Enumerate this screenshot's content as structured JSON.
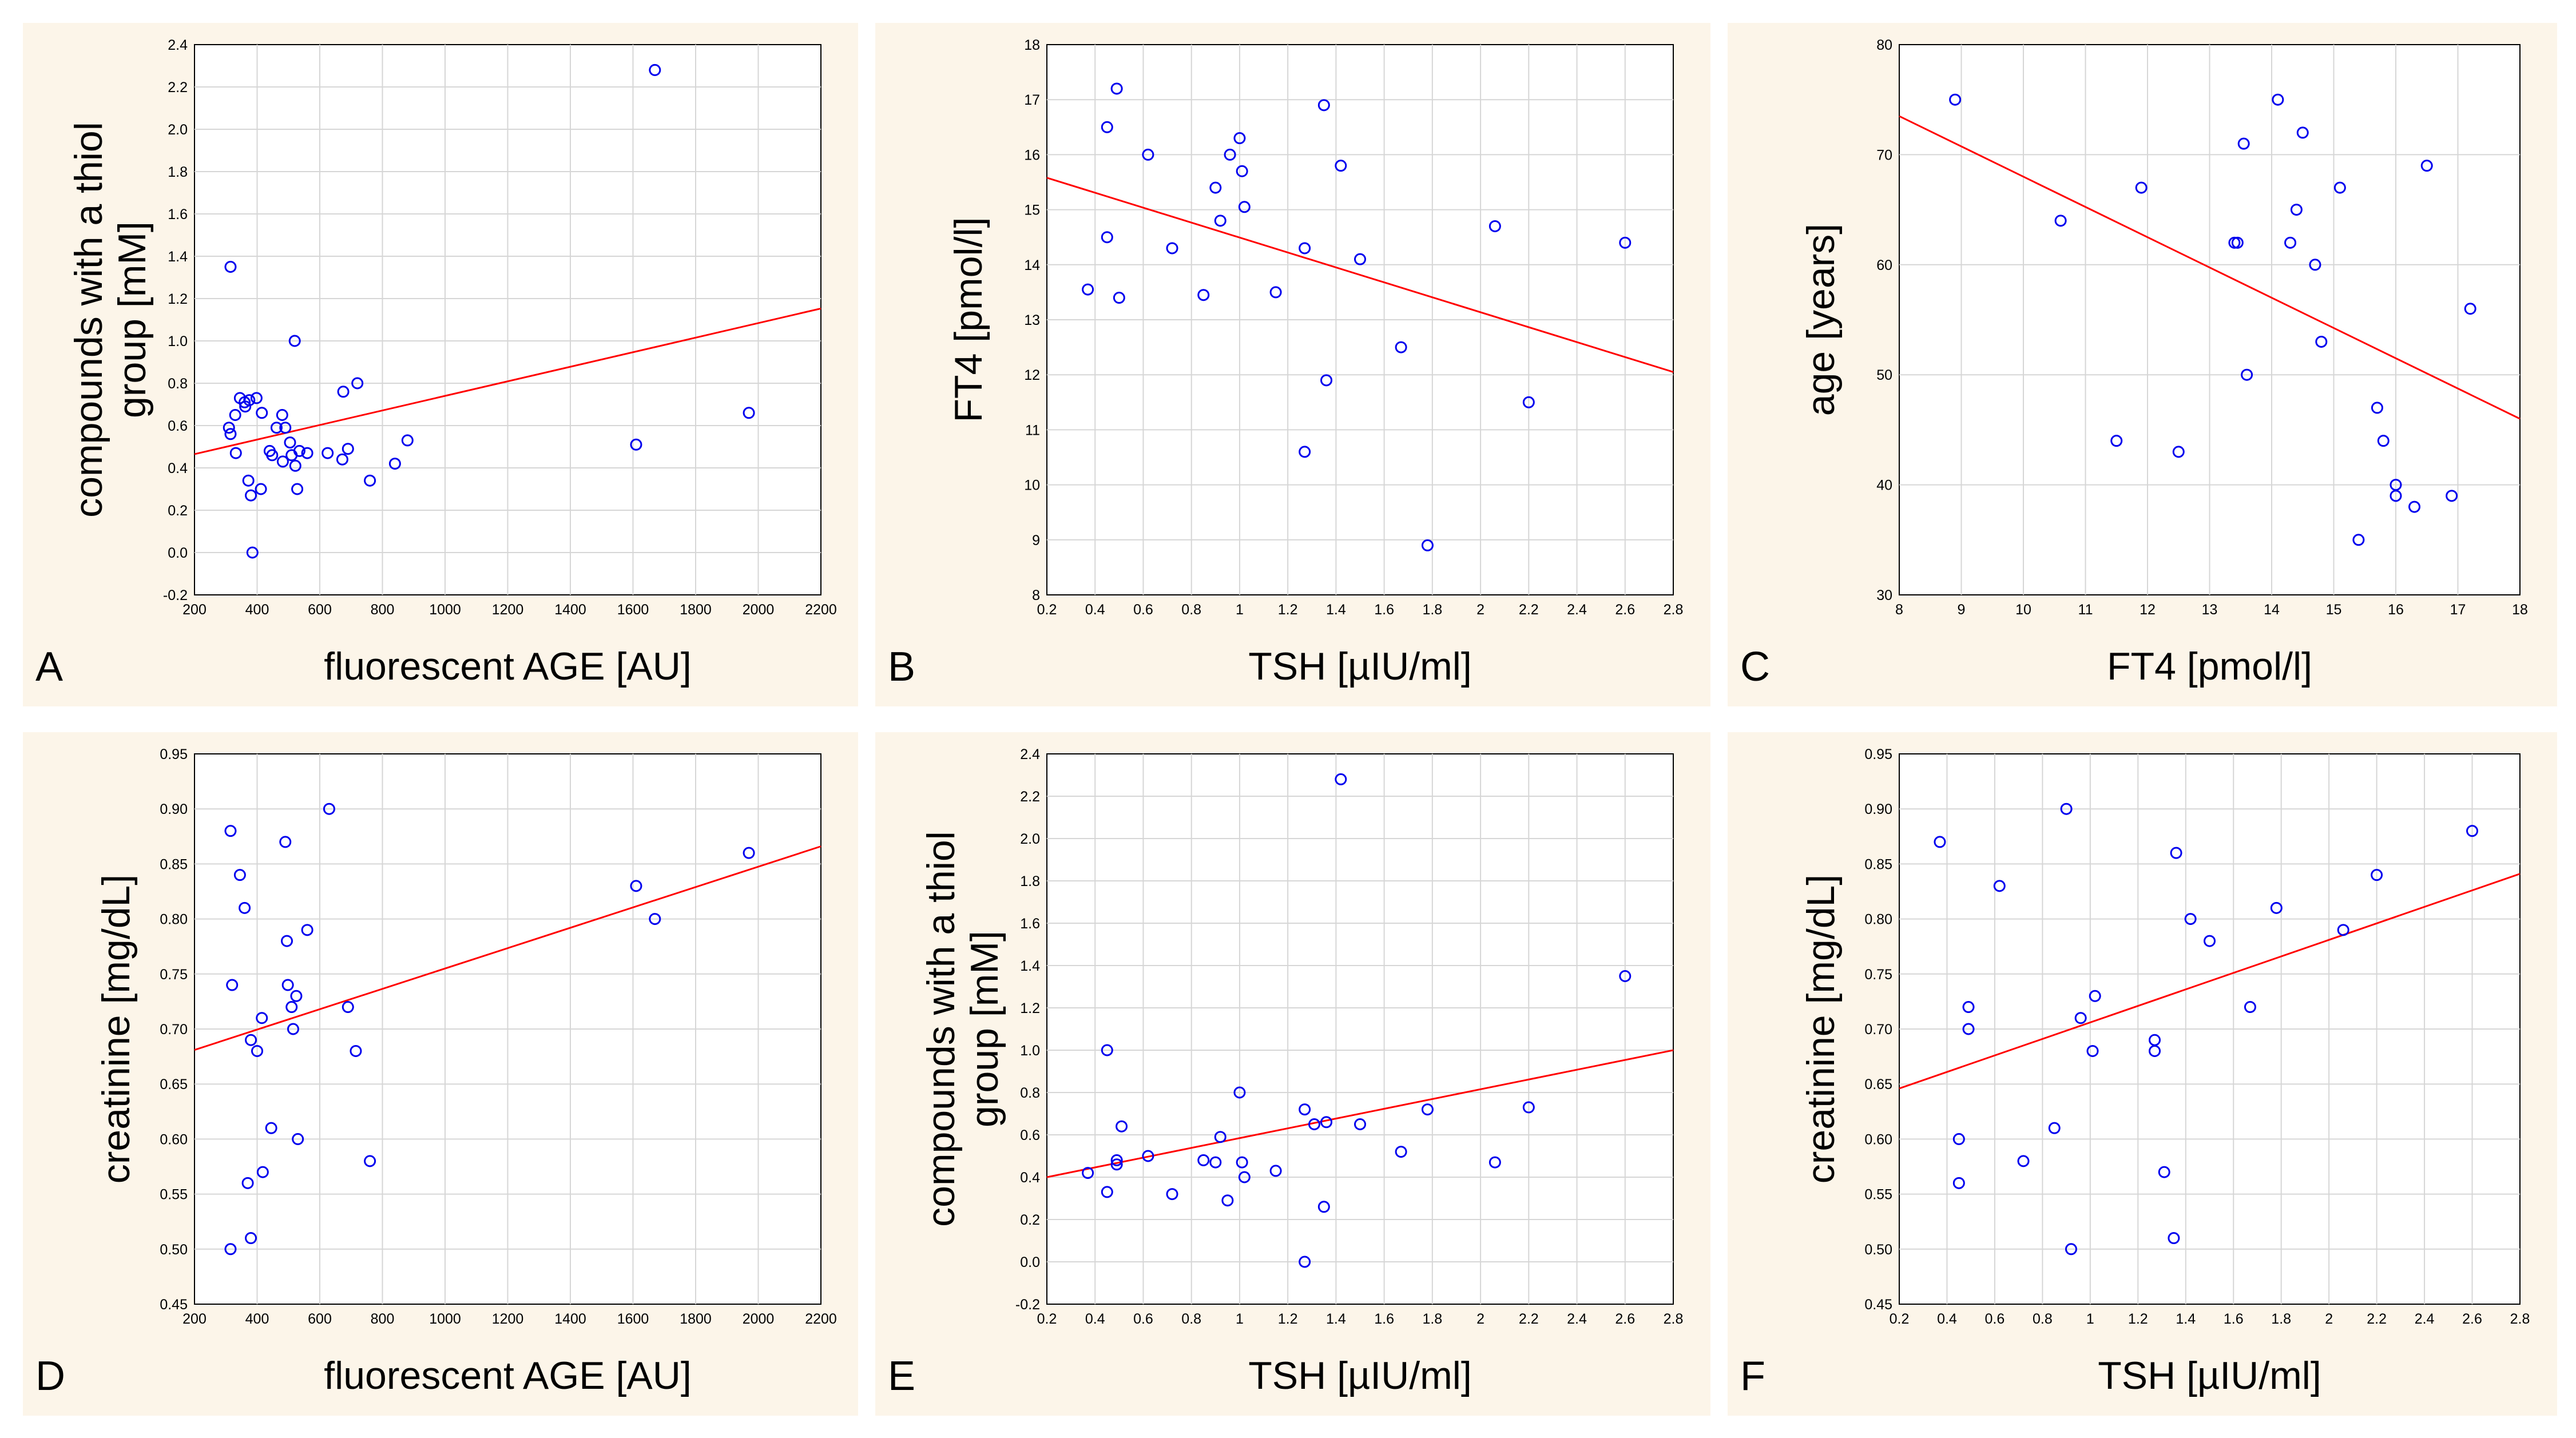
{
  "figure": {
    "background": "#fcf5e9",
    "point_color": "#0000ee",
    "fit_color": "#ff0000"
  },
  "chart_data": [
    {
      "id": "A",
      "type": "scatter",
      "panel_label": "A",
      "xlabel": "fluorescent AGE [AU]",
      "ylabel_lines": [
        "compounds with a thiol",
        "group [mM]"
      ],
      "xlim": [
        200,
        2200
      ],
      "ylim": [
        -0.2,
        2.4
      ],
      "xticks": [
        200,
        400,
        600,
        800,
        1000,
        1200,
        1400,
        1600,
        1800,
        2000,
        2200
      ],
      "yticks": [
        -0.2,
        0.0,
        0.2,
        0.4,
        0.6,
        0.8,
        1.0,
        1.2,
        1.4,
        1.6,
        1.8,
        2.0,
        2.2,
        2.4
      ],
      "ytick_decimals": 1,
      "points": [
        [
          315,
          1.35
        ],
        [
          310,
          0.59
        ],
        [
          315,
          0.56
        ],
        [
          330,
          0.65
        ],
        [
          332,
          0.47
        ],
        [
          345,
          0.73
        ],
        [
          360,
          0.71
        ],
        [
          362,
          0.69
        ],
        [
          375,
          0.72
        ],
        [
          372,
          0.34
        ],
        [
          380,
          0.27
        ],
        [
          385,
          0.0
        ],
        [
          398,
          0.73
        ],
        [
          415,
          0.66
        ],
        [
          412,
          0.3
        ],
        [
          440,
          0.48
        ],
        [
          448,
          0.46
        ],
        [
          462,
          0.59
        ],
        [
          480,
          0.65
        ],
        [
          482,
          0.43
        ],
        [
          490,
          0.59
        ],
        [
          505,
          0.52
        ],
        [
          510,
          0.46
        ],
        [
          520,
          1.0
        ],
        [
          522,
          0.41
        ],
        [
          528,
          0.3
        ],
        [
          535,
          0.48
        ],
        [
          560,
          0.47
        ],
        [
          625,
          0.47
        ],
        [
          672,
          0.44
        ],
        [
          675,
          0.76
        ],
        [
          690,
          0.49
        ],
        [
          720,
          0.8
        ],
        [
          760,
          0.34
        ],
        [
          840,
          0.42
        ],
        [
          880,
          0.53
        ],
        [
          1610,
          0.51
        ],
        [
          1670,
          2.28
        ],
        [
          1970,
          0.66
        ]
      ],
      "fit": [
        [
          200,
          0.465
        ],
        [
          2200,
          1.153
        ]
      ]
    },
    {
      "id": "B",
      "type": "scatter",
      "panel_label": "B",
      "xlabel": "TSH  [µIU/ml]",
      "ylabel_lines": [
        "FT4 [pmol/l]"
      ],
      "xlim": [
        0.2,
        2.8
      ],
      "ylim": [
        8,
        18
      ],
      "xticks": [
        0.2,
        0.4,
        0.6,
        0.8,
        1.0,
        1.2,
        1.4,
        1.6,
        1.8,
        2.0,
        2.2,
        2.4,
        2.6,
        2.8
      ],
      "yticks": [
        8,
        9,
        10,
        11,
        12,
        13,
        14,
        15,
        16,
        17,
        18
      ],
      "ytick_decimals": 0,
      "points": [
        [
          0.37,
          13.55
        ],
        [
          0.45,
          16.5
        ],
        [
          0.45,
          14.5
        ],
        [
          0.49,
          17.2
        ],
        [
          0.5,
          13.4
        ],
        [
          0.62,
          16.0
        ],
        [
          0.72,
          14.3
        ],
        [
          0.85,
          13.45
        ],
        [
          0.9,
          15.4
        ],
        [
          0.92,
          14.8
        ],
        [
          0.96,
          16.0
        ],
        [
          1.0,
          16.3
        ],
        [
          1.01,
          15.7
        ],
        [
          1.02,
          15.05
        ],
        [
          1.15,
          13.5
        ],
        [
          1.27,
          14.3
        ],
        [
          1.27,
          10.6
        ],
        [
          1.35,
          16.9
        ],
        [
          1.36,
          11.9
        ],
        [
          1.42,
          15.8
        ],
        [
          1.5,
          14.1
        ],
        [
          1.67,
          12.5
        ],
        [
          1.78,
          8.9
        ],
        [
          2.06,
          14.7
        ],
        [
          2.2,
          11.5
        ],
        [
          2.6,
          14.4
        ]
      ],
      "fit": [
        [
          0.2,
          15.58
        ],
        [
          2.8,
          12.05
        ]
      ]
    },
    {
      "id": "C",
      "type": "scatter",
      "panel_label": "C",
      "xlabel": "FT4 [pmol/l]",
      "ylabel_lines": [
        "age [years]"
      ],
      "xlim": [
        8,
        18
      ],
      "ylim": [
        30,
        80
      ],
      "xticks": [
        8,
        9,
        10,
        11,
        12,
        13,
        14,
        15,
        16,
        17,
        18
      ],
      "yticks": [
        30,
        40,
        50,
        60,
        70,
        80
      ],
      "ytick_decimals": 0,
      "points": [
        [
          8.9,
          75
        ],
        [
          10.6,
          64
        ],
        [
          11.5,
          44
        ],
        [
          11.9,
          67
        ],
        [
          12.5,
          43
        ],
        [
          13.4,
          62
        ],
        [
          13.45,
          62
        ],
        [
          13.55,
          71
        ],
        [
          13.6,
          50
        ],
        [
          14.1,
          75
        ],
        [
          14.3,
          62
        ],
        [
          14.4,
          65
        ],
        [
          14.5,
          72
        ],
        [
          14.7,
          60
        ],
        [
          14.8,
          53
        ],
        [
          15.1,
          67
        ],
        [
          15.4,
          35
        ],
        [
          15.7,
          47
        ],
        [
          15.8,
          44
        ],
        [
          16.0,
          40
        ],
        [
          16.0,
          39
        ],
        [
          16.3,
          38
        ],
        [
          16.5,
          69
        ],
        [
          16.9,
          39
        ],
        [
          17.2,
          56
        ]
      ],
      "fit": [
        [
          8,
          73.5
        ],
        [
          18,
          46.0
        ]
      ]
    },
    {
      "id": "D",
      "type": "scatter",
      "panel_label": "D",
      "xlabel": "fluorescent AGE [AU]",
      "ylabel_lines": [
        "creatinine [mg/dL]"
      ],
      "xlim": [
        200,
        2200
      ],
      "ylim": [
        0.45,
        0.95
      ],
      "xticks": [
        200,
        400,
        600,
        800,
        1000,
        1200,
        1400,
        1600,
        1800,
        2000,
        2200
      ],
      "yticks": [
        0.45,
        0.5,
        0.55,
        0.6,
        0.65,
        0.7,
        0.75,
        0.8,
        0.85,
        0.9,
        0.95
      ],
      "ytick_decimals": 2,
      "points": [
        [
          315,
          0.88
        ],
        [
          315,
          0.5
        ],
        [
          320,
          0.74
        ],
        [
          345,
          0.84
        ],
        [
          360,
          0.81
        ],
        [
          370,
          0.56
        ],
        [
          380,
          0.69
        ],
        [
          380,
          0.51
        ],
        [
          400,
          0.68
        ],
        [
          415,
          0.71
        ],
        [
          418,
          0.57
        ],
        [
          445,
          0.61
        ],
        [
          490,
          0.87
        ],
        [
          495,
          0.78
        ],
        [
          498,
          0.74
        ],
        [
          510,
          0.72
        ],
        [
          515,
          0.7
        ],
        [
          525,
          0.73
        ],
        [
          530,
          0.6
        ],
        [
          560,
          0.79
        ],
        [
          630,
          0.9
        ],
        [
          690,
          0.72
        ],
        [
          715,
          0.68
        ],
        [
          760,
          0.58
        ],
        [
          1610,
          0.83
        ],
        [
          1670,
          0.8
        ],
        [
          1970,
          0.86
        ]
      ],
      "fit": [
        [
          200,
          0.681
        ],
        [
          2200,
          0.866
        ]
      ]
    },
    {
      "id": "E",
      "type": "scatter",
      "panel_label": "E",
      "xlabel": "TSH [µIU/ml]",
      "ylabel_lines": [
        "compounds with a thiol",
        "group [mM]"
      ],
      "xlim": [
        0.2,
        2.8
      ],
      "ylim": [
        -0.2,
        2.4
      ],
      "xticks": [
        0.2,
        0.4,
        0.6,
        0.8,
        1.0,
        1.2,
        1.4,
        1.6,
        1.8,
        2.0,
        2.2,
        2.4,
        2.6,
        2.8
      ],
      "yticks": [
        -0.2,
        0.0,
        0.2,
        0.4,
        0.6,
        0.8,
        1.0,
        1.2,
        1.4,
        1.6,
        1.8,
        2.0,
        2.2,
        2.4
      ],
      "ytick_decimals": 1,
      "points": [
        [
          0.37,
          0.42
        ],
        [
          0.45,
          1.0
        ],
        [
          0.45,
          0.33
        ],
        [
          0.49,
          0.48
        ],
        [
          0.49,
          0.46
        ],
        [
          0.51,
          0.64
        ],
        [
          0.62,
          0.5
        ],
        [
          0.72,
          0.32
        ],
        [
          0.85,
          0.48
        ],
        [
          0.9,
          0.47
        ],
        [
          0.92,
          0.59
        ],
        [
          0.95,
          0.29
        ],
        [
          1.0,
          0.8
        ],
        [
          1.01,
          0.47
        ],
        [
          1.02,
          0.4
        ],
        [
          1.15,
          0.43
        ],
        [
          1.27,
          0.72
        ],
        [
          1.27,
          0.0
        ],
        [
          1.31,
          0.65
        ],
        [
          1.35,
          0.26
        ],
        [
          1.36,
          0.66
        ],
        [
          1.42,
          2.28
        ],
        [
          1.5,
          0.65
        ],
        [
          1.67,
          0.52
        ],
        [
          1.78,
          0.72
        ],
        [
          2.06,
          0.47
        ],
        [
          2.2,
          0.73
        ],
        [
          2.6,
          1.35
        ]
      ],
      "fit": [
        [
          0.2,
          0.4
        ],
        [
          2.8,
          1.0
        ]
      ]
    },
    {
      "id": "F",
      "type": "scatter",
      "panel_label": "F",
      "xlabel": "TSH [µIU/ml]",
      "ylabel_lines": [
        "creatinine [mg/dL]"
      ],
      "xlim": [
        0.2,
        2.8
      ],
      "ylim": [
        0.45,
        0.95
      ],
      "xticks": [
        0.2,
        0.4,
        0.6,
        0.8,
        1.0,
        1.2,
        1.4,
        1.6,
        1.8,
        2.0,
        2.2,
        2.4,
        2.6,
        2.8
      ],
      "yticks": [
        0.45,
        0.5,
        0.55,
        0.6,
        0.65,
        0.7,
        0.75,
        0.8,
        0.85,
        0.9,
        0.95
      ],
      "ytick_decimals": 2,
      "points": [
        [
          0.37,
          0.87
        ],
        [
          0.45,
          0.6
        ],
        [
          0.45,
          0.56
        ],
        [
          0.49,
          0.72
        ],
        [
          0.49,
          0.7
        ],
        [
          0.62,
          0.83
        ],
        [
          0.72,
          0.58
        ],
        [
          0.85,
          0.61
        ],
        [
          0.9,
          0.9
        ],
        [
          0.92,
          0.5
        ],
        [
          0.96,
          0.71
        ],
        [
          1.01,
          0.68
        ],
        [
          1.02,
          0.73
        ],
        [
          1.27,
          0.69
        ],
        [
          1.27,
          0.68
        ],
        [
          1.31,
          0.57
        ],
        [
          1.35,
          0.51
        ],
        [
          1.36,
          0.86
        ],
        [
          1.42,
          0.8
        ],
        [
          1.5,
          0.78
        ],
        [
          1.67,
          0.72
        ],
        [
          1.78,
          0.81
        ],
        [
          2.06,
          0.79
        ],
        [
          2.2,
          0.84
        ],
        [
          2.6,
          0.88
        ]
      ],
      "fit": [
        [
          0.2,
          0.646
        ],
        [
          2.8,
          0.841
        ]
      ]
    }
  ]
}
